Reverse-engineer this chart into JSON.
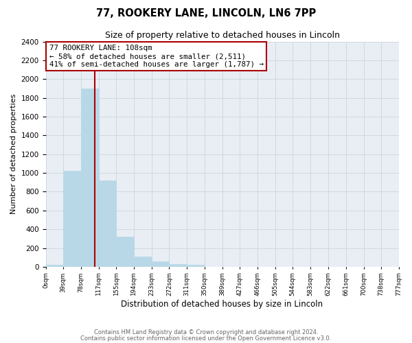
{
  "title": "77, ROOKERY LANE, LINCOLN, LN6 7PP",
  "subtitle": "Size of property relative to detached houses in Lincoln",
  "xlabel": "Distribution of detached houses by size in Lincoln",
  "ylabel": "Number of detached properties",
  "bar_edges": [
    0,
    39,
    78,
    117,
    155,
    194,
    233,
    272,
    311,
    350,
    389,
    427,
    466,
    505,
    544,
    583,
    622,
    661,
    700,
    738,
    777
  ],
  "bar_heights": [
    20,
    1020,
    1900,
    920,
    320,
    110,
    55,
    30,
    20,
    0,
    0,
    0,
    0,
    0,
    0,
    0,
    0,
    0,
    0,
    0
  ],
  "bar_color": "#b8d8e8",
  "bar_edgecolor": "#b8d8e8",
  "property_line_x": 108,
  "property_line_color": "#aa0000",
  "annotation_line1": "77 ROOKERY LANE: 108sqm",
  "annotation_line2": "← 58% of detached houses are smaller (2,511)",
  "annotation_line3": "41% of semi-detached houses are larger (1,787) →",
  "annotation_box_facecolor": "#ffffff",
  "annotation_box_edgecolor": "#aa0000",
  "ylim": [
    0,
    2400
  ],
  "yticks": [
    0,
    200,
    400,
    600,
    800,
    1000,
    1200,
    1400,
    1600,
    1800,
    2000,
    2200,
    2400
  ],
  "xtick_labels": [
    "0sqm",
    "39sqm",
    "78sqm",
    "117sqm",
    "155sqm",
    "194sqm",
    "233sqm",
    "272sqm",
    "311sqm",
    "350sqm",
    "389sqm",
    "427sqm",
    "466sqm",
    "505sqm",
    "544sqm",
    "583sqm",
    "622sqm",
    "661sqm",
    "700sqm",
    "738sqm",
    "777sqm"
  ],
  "grid_color": "#d0d8e0",
  "background_color": "#ffffff",
  "plot_bg_color": "#e8eef4",
  "footer_line1": "Contains HM Land Registry data © Crown copyright and database right 2024.",
  "footer_line2": "Contains public sector information licensed under the Open Government Licence v3.0."
}
